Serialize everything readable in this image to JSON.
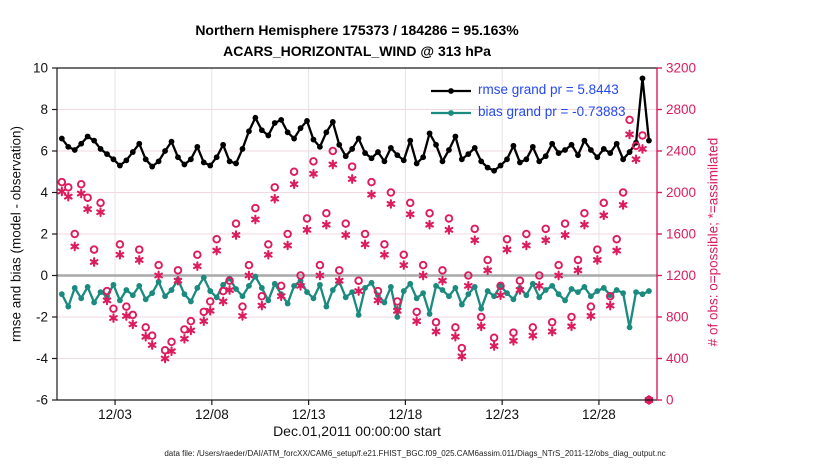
{
  "chart_data": {
    "type": "line",
    "title1": "Northern Hemisphere 175373 / 184286 = 95.163%",
    "title2": "ACARS_HORIZONTAL_WIND @ 313 hPa",
    "xlabel": "Dec.01,2011 00:00:00 start",
    "ylabel_left": "rmse and bias (model - observation)",
    "ylabel_right": "# of obs: o=possible; *=assimilated",
    "caption": "data file: /Users/raeder/DAI/ATM_forcXX/CAM6_setup/f.e21.FHIST_BGC.f09_025.CAM6assim.011/Diags_NTrS_2011-12/obs_diag_output.nc",
    "colors": {
      "rmse": "#000000",
      "bias": "#1b8a7f",
      "obs": "#dc1c5e",
      "legend_text": "#2448f0",
      "zero_line": "#a9a9a9",
      "grid_h": "#f2d9e0",
      "grid_v": "#e4e4e4",
      "axis_left": "#1a1a1a"
    },
    "x_axis": {
      "domain_days": [
        -1,
        30
      ],
      "tick_days": [
        2,
        7,
        12,
        17,
        22,
        27
      ],
      "tick_labels": [
        "12/03",
        "12/08",
        "12/13",
        "12/18",
        "12/23",
        "12/28"
      ]
    },
    "y_left": {
      "min": -6,
      "max": 10,
      "ticks": [
        10,
        8,
        6,
        4,
        2,
        0,
        -2,
        -4,
        -6
      ]
    },
    "y_right": {
      "min": 0,
      "max": 3200,
      "ticks": [
        3200,
        2800,
        2400,
        2000,
        1600,
        1200,
        800,
        400,
        0
      ]
    },
    "x_start_day": -0.75,
    "x_step_days": 0.3333333,
    "n_points": 92,
    "series": [
      {
        "name": "rmse",
        "axis": "left",
        "marker": "dot",
        "grand_pr": 5.8443,
        "values": [
          6.6,
          6.2,
          6.05,
          6.35,
          6.7,
          6.5,
          6.1,
          5.85,
          5.6,
          5.3,
          5.55,
          5.95,
          6.35,
          5.6,
          5.25,
          5.5,
          6.0,
          6.45,
          5.7,
          5.35,
          5.6,
          6.2,
          5.45,
          5.3,
          5.7,
          6.3,
          5.5,
          5.4,
          6.1,
          6.95,
          7.6,
          7.0,
          6.75,
          7.35,
          7.5,
          6.9,
          6.6,
          7.1,
          7.45,
          6.55,
          6.2,
          6.9,
          7.4,
          6.3,
          5.75,
          6.1,
          6.6,
          5.9,
          5.65,
          5.95,
          5.5,
          6.15,
          5.8,
          5.55,
          6.5,
          5.4,
          5.7,
          6.85,
          6.3,
          5.5,
          6.05,
          6.7,
          5.6,
          5.85,
          6.15,
          5.5,
          5.2,
          5.05,
          5.3,
          5.6,
          6.25,
          5.45,
          5.6,
          6.2,
          5.5,
          5.75,
          6.35,
          5.9,
          6.05,
          6.3,
          5.8,
          6.5,
          6.05,
          5.7,
          6.1,
          5.9,
          6.35,
          5.6,
          5.95,
          6.4,
          9.5,
          6.5
        ]
      },
      {
        "name": "bias",
        "axis": "left",
        "marker": "dot",
        "grand_pr": -0.73883,
        "values": [
          -0.9,
          -1.5,
          -0.6,
          -1.1,
          -0.55,
          -1.3,
          -0.8,
          -1.0,
          -0.45,
          -1.2,
          -0.7,
          -0.95,
          -0.5,
          -1.15,
          -0.85,
          -0.3,
          -1.0,
          -0.7,
          -0.2,
          -0.9,
          -1.25,
          -0.6,
          -0.1,
          -0.75,
          -1.05,
          -0.45,
          -0.15,
          -0.65,
          -1.0,
          -0.5,
          -0.05,
          -0.6,
          -1.2,
          -0.4,
          -0.9,
          -1.35,
          -0.5,
          -0.25,
          -0.8,
          -1.1,
          -0.45,
          -1.5,
          -0.7,
          -0.3,
          -1.05,
          -0.8,
          -1.9,
          -0.6,
          -0.35,
          -0.95,
          -1.3,
          -0.55,
          -2.0,
          -0.75,
          -0.4,
          -1.1,
          -0.85,
          -1.85,
          -0.5,
          -0.7,
          -1.0,
          -0.6,
          -1.4,
          -0.9,
          -0.55,
          -1.6,
          -0.75,
          -1.0,
          -0.5,
          -0.85,
          -1.15,
          -0.6,
          -0.95,
          -0.4,
          -1.05,
          -0.7,
          -0.5,
          -0.9,
          -1.2,
          -0.65,
          -0.8,
          -0.55,
          -1.0,
          -0.75,
          -0.6,
          -0.95,
          -0.7,
          -0.85,
          -2.5,
          -0.8,
          -0.9,
          -0.75
        ]
      },
      {
        "name": "possible",
        "axis": "right",
        "marker": "open-circle",
        "values": [
          2100,
          2050,
          1600,
          2080,
          1950,
          1450,
          1900,
          1050,
          880,
          1500,
          900,
          820,
          1450,
          700,
          620,
          1300,
          480,
          560,
          1250,
          680,
          760,
          1400,
          850,
          950,
          1550,
          1050,
          1150,
          1700,
          900,
          1300,
          1850,
          1000,
          1500,
          2050,
          1100,
          1600,
          2200,
          1200,
          1750,
          2300,
          1300,
          1800,
          2400,
          1250,
          1700,
          2250,
          1150,
          1600,
          2100,
          1050,
          1500,
          2000,
          950,
          1400,
          1900,
          850,
          1300,
          1800,
          750,
          1250,
          1750,
          700,
          500,
          1200,
          1650,
          800,
          1350,
          600,
          1100,
          1550,
          650,
          1150,
          1600,
          700,
          1200,
          1650,
          750,
          1300,
          1700,
          800,
          1350,
          1800,
          900,
          1450,
          1900,
          1000,
          1550,
          2000,
          2700,
          2450,
          2550,
          0
        ]
      },
      {
        "name": "assimilated",
        "axis": "right",
        "marker": "asterisk",
        "values": [
          2010,
          1960,
          1480,
          1990,
          1840,
          1330,
          1810,
          960,
          790,
          1400,
          810,
          730,
          1350,
          610,
          530,
          1200,
          400,
          470,
          1150,
          590,
          670,
          1290,
          760,
          860,
          1440,
          950,
          1060,
          1590,
          810,
          1200,
          1740,
          910,
          1400,
          1940,
          1000,
          1490,
          2080,
          1100,
          1640,
          2180,
          1200,
          1690,
          2270,
          1150,
          1590,
          2130,
          1050,
          1500,
          1980,
          960,
          1400,
          1890,
          860,
          1300,
          1790,
          760,
          1200,
          1690,
          660,
          1150,
          1640,
          610,
          420,
          1100,
          1540,
          710,
          1250,
          520,
          1010,
          1450,
          570,
          1060,
          1490,
          620,
          1100,
          1540,
          660,
          1200,
          1590,
          710,
          1250,
          1690,
          810,
          1350,
          1780,
          910,
          1440,
          1880,
          2560,
          2320,
          2420,
          0
        ]
      }
    ],
    "legend": [
      {
        "text": "rmse grand pr = 5.8443"
      },
      {
        "text": "bias grand pr = -0.73883"
      }
    ]
  }
}
